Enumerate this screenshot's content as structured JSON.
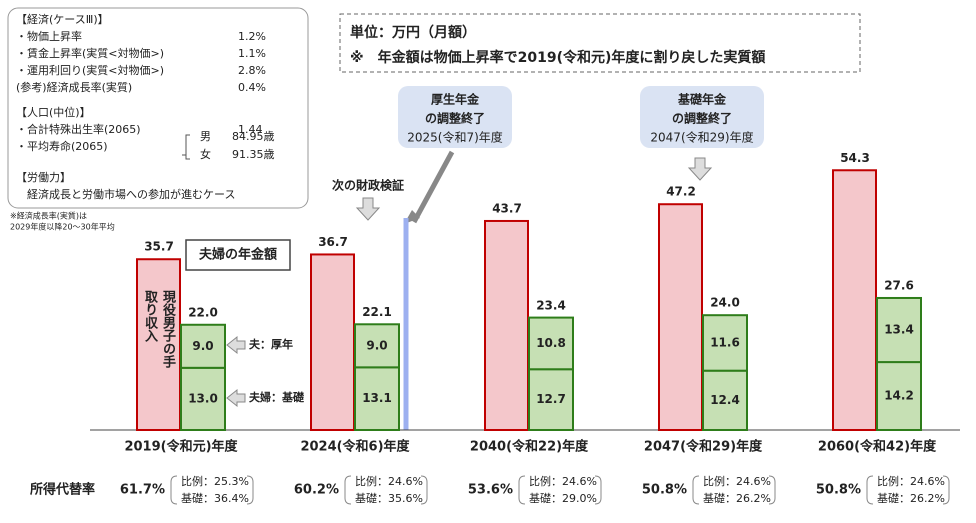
{
  "chart_data": {
    "type": "bar",
    "unit_note": "単位：万円（月額）",
    "real_note": "※　年金額は物価上昇率で2019(令和元)年度に割り戻した実質額",
    "categories": [
      "2019(令和元)年度",
      "2024(令和6)年度",
      "2040(令和22)年度",
      "2047(令和29)年度",
      "2060(令和42)年度"
    ],
    "ylim": [
      0,
      60
    ],
    "wage": {
      "name": "現役男子の手取り収入",
      "color": "#f4c7cb",
      "border": "#c00000",
      "values": [
        35.7,
        36.7,
        43.7,
        47.2,
        54.3
      ]
    },
    "couple_label": "夫婦の年金額",
    "couple_totals": {
      "values": [
        22.0,
        22.1,
        23.4,
        24.0,
        27.6
      ],
      "value_labels": [
        "22.0",
        "22.1",
        "23.4",
        "24.0",
        "27.6"
      ]
    },
    "series": [
      {
        "name": "夫婦：基礎",
        "color": "#c6e0b4",
        "border": "#2e7d1a",
        "values": [
          13.0,
          13.1,
          12.7,
          12.4,
          14.2
        ],
        "value_labels": [
          "13.0",
          "13.1",
          "12.7",
          "12.4",
          "14.2"
        ]
      },
      {
        "name": "夫：厚年",
        "color": "#c6e0b4",
        "border": "#2e7d1a",
        "values": [
          9.0,
          9.0,
          10.8,
          11.6,
          13.4
        ],
        "value_labels": [
          "9.0",
          "9.0",
          "10.8",
          "11.6",
          "13.4"
        ]
      }
    ],
    "annotations": {
      "next_review": "次の財政検証",
      "kosei": [
        "厚生年金",
        "の調整終了",
        "2025(令和7)年度"
      ],
      "kiso": [
        "基礎年金",
        "の調整終了",
        "2047(令和29)年度"
      ]
    },
    "assumptions": [
      {
        "label": "【経済(ケースⅢ)】"
      },
      {
        "label": "・物価上昇率",
        "value": "1.2%"
      },
      {
        "label": "・賃金上昇率(実質<対物価>)",
        "value": "1.1%"
      },
      {
        "label": "・運用利回り(実質<対物価>)",
        "value": "2.8%"
      },
      {
        "label": "(参考)経済成長率(実質)",
        "value": "0.4%"
      },
      {
        "label": "【人口(中位)】"
      },
      {
        "label": "・合計特殊出生率(2065)",
        "value": "1.44"
      },
      {
        "label": "・平均寿命(2065)",
        "male": "男",
        "male_value": "84.95歳",
        "female": "女",
        "female_value": "91.35歳"
      },
      {
        "label": "【労働力】"
      },
      {
        "label": "　経済成長と労働市場への参加が進むケース"
      }
    ],
    "footnote": [
      "※経済成長率(実質)は",
      "2029年度以降20～30年平均"
    ],
    "replacement": {
      "label": "所得代替率",
      "rates": [
        "61.7%",
        "60.2%",
        "53.6%",
        "50.8%",
        "50.8%"
      ],
      "hirei": [
        "比例：25.3%",
        "比例：24.6%",
        "比例：24.6%",
        "比例：24.6%",
        "比例：24.6%"
      ],
      "kiso": [
        "基礎：36.4%",
        "基礎：35.6%",
        "基礎：29.0%",
        "基礎：26.2%",
        "基礎：26.2%"
      ]
    }
  }
}
